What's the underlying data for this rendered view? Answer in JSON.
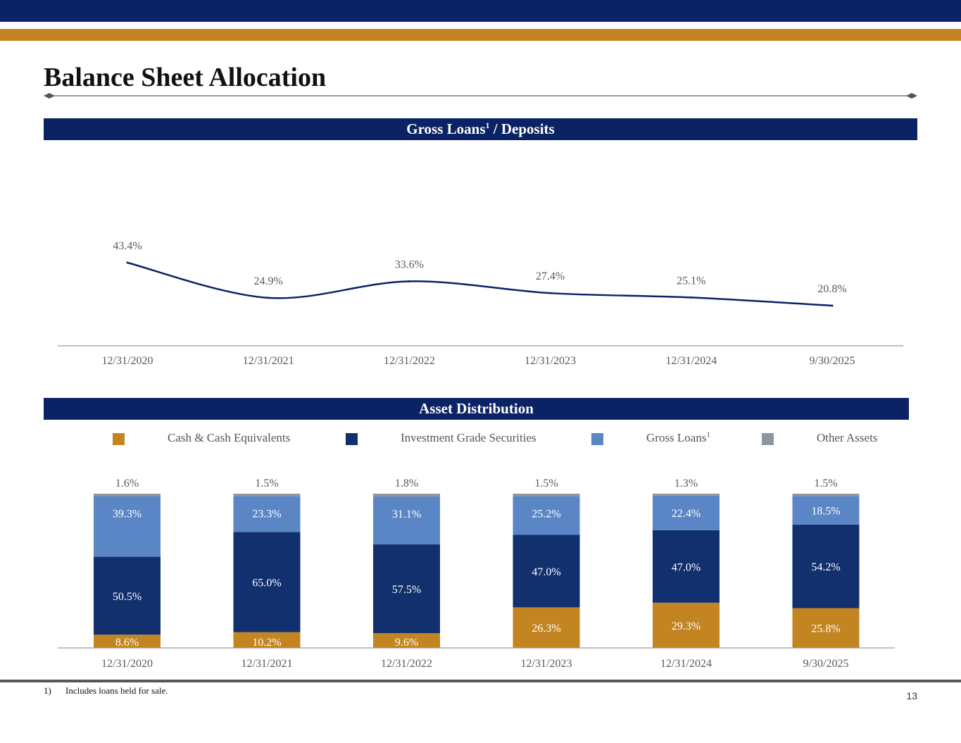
{
  "page": {
    "title": "Balance Sheet Allocation",
    "page_number": "13",
    "footnote_number": "1)",
    "footnote_text": "Includes loans held for sale.",
    "colors": {
      "navy": "#0b2265",
      "gold": "#c38522",
      "cash": "#c38522",
      "securities": "#12306e",
      "loans": "#5b86c6",
      "other": "#8f969f"
    }
  },
  "chart_data": [
    {
      "type": "line",
      "title": "Gross Loans",
      "title_superscript": "1",
      "title_suffix": " / Deposits",
      "categories": [
        "12/31/2020",
        "12/31/2021",
        "12/31/2022",
        "12/31/2023",
        "12/31/2024",
        "9/30/2025"
      ],
      "values": [
        43.4,
        24.9,
        33.6,
        27.4,
        25.1,
        20.8
      ],
      "labels": [
        "43.4%",
        "24.9%",
        "33.6%",
        "27.4%",
        "25.1%",
        "20.8%"
      ],
      "xlabel": "",
      "ylabel": "",
      "grid": false,
      "legend": "none"
    },
    {
      "type": "bar",
      "stacked": true,
      "title": "Asset Distribution",
      "categories": [
        "12/31/2020",
        "12/31/2021",
        "12/31/2022",
        "12/31/2023",
        "12/31/2024",
        "9/30/2025"
      ],
      "series": [
        {
          "name": "Cash & Cash Equivalents",
          "sup": "",
          "color": "#c38522",
          "values": [
            8.6,
            10.2,
            9.6,
            26.3,
            29.3,
            25.8
          ],
          "labels": [
            "8.6%",
            "10.2%",
            "9.6%",
            "26.3%",
            "29.3%",
            "25.8%"
          ]
        },
        {
          "name": "Investment Grade Securities",
          "sup": "",
          "color": "#12306e",
          "values": [
            50.5,
            65.0,
            57.5,
            47.0,
            47.0,
            54.2
          ],
          "labels": [
            "50.5%",
            "65.0%",
            "57.5%",
            "47.0%",
            "47.0%",
            "54.2%"
          ]
        },
        {
          "name": "Gross Loans",
          "sup": "1",
          "color": "#5b86c6",
          "values": [
            39.3,
            23.3,
            31.1,
            25.2,
            22.4,
            18.5
          ],
          "labels": [
            "39.3%",
            "23.3%",
            "31.1%",
            "25.2%",
            "22.4%",
            "18.5%"
          ]
        },
        {
          "name": "Other Assets",
          "sup": "",
          "color": "#8f969f",
          "values": [
            1.6,
            1.5,
            1.8,
            1.5,
            1.3,
            1.5
          ],
          "labels": [
            "1.6%",
            "1.5%",
            "1.8%",
            "1.5%",
            "1.3%",
            "1.5%"
          ]
        }
      ],
      "ylim": [
        0,
        100
      ],
      "xlabel": "",
      "ylabel": "",
      "grid": false,
      "legend": "top"
    }
  ]
}
